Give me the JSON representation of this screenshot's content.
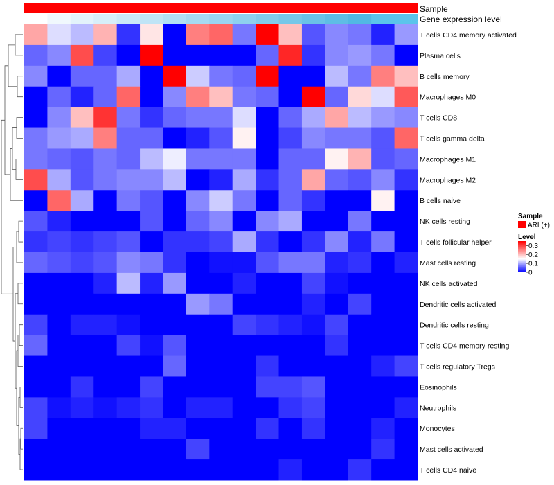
{
  "chart_data": {
    "type": "heatmap",
    "column_annotations": [
      {
        "label": "Sample"
      },
      {
        "label": "Gene expression level"
      }
    ],
    "sample_annotation_color": "#ff0000",
    "expression_annotation_colors": [
      "#ffffff",
      "#f0f8fd",
      "#e3f3fb",
      "#d7eef9",
      "#cbe9f8",
      "#bfe4f6",
      "#b2dff4",
      "#a6daf2",
      "#9ad5f0",
      "#8ed1ee",
      "#82cceb",
      "#76c7e9",
      "#6ac2e7",
      "#5ebde5",
      "#52b8e3",
      "#5bc4eb",
      "#5bc4eb"
    ],
    "rows": [
      "T cells CD4 memory activated",
      "Plasma cells",
      "B cells memory",
      "Macrophages M0",
      "T cells CD8",
      "T cells gamma delta",
      "Macrophages M1",
      "Macrophages M2",
      "B cells naive",
      "NK cells resting",
      "T cells follicular helper",
      "Mast cells resting",
      "NK cells activated",
      "Dendritic cells activated",
      "Dendritic cells resting",
      "T cells CD4 memory resting",
      "T cells regulatory  Tregs",
      "Eosinophils",
      "Neutrophils",
      "Monocytes",
      "Mast cells activated",
      "T cells CD4 naive"
    ],
    "n_columns": 17,
    "values": [
      [
        0.22,
        0.13,
        0.11,
        0.21,
        0.03,
        0.17,
        0.0,
        0.25,
        0.27,
        0.07,
        0.35,
        0.2,
        0.05,
        0.08,
        0.07,
        0.02,
        0.09
      ],
      [
        0.06,
        0.08,
        0.29,
        0.04,
        0.0,
        0.35,
        0.0,
        0.0,
        0.0,
        0.0,
        0.06,
        0.32,
        0.03,
        0.08,
        0.09,
        0.07,
        0.0
      ],
      [
        0.08,
        0.0,
        0.06,
        0.06,
        0.1,
        0.0,
        0.35,
        0.12,
        0.07,
        0.06,
        0.35,
        0.0,
        0.0,
        0.11,
        0.07,
        0.25,
        0.2
      ],
      [
        0.0,
        0.06,
        0.02,
        0.06,
        0.27,
        0.0,
        0.08,
        0.25,
        0.2,
        0.07,
        0.06,
        0.0,
        0.35,
        0.06,
        0.18,
        0.13,
        0.28
      ],
      [
        0.0,
        0.08,
        0.2,
        0.31,
        0.07,
        0.03,
        0.06,
        0.07,
        0.07,
        0.13,
        0.0,
        0.06,
        0.1,
        0.22,
        0.11,
        0.09,
        0.08
      ],
      [
        0.07,
        0.09,
        0.1,
        0.25,
        0.06,
        0.06,
        0.0,
        0.02,
        0.05,
        0.16,
        0.0,
        0.04,
        0.08,
        0.07,
        0.07,
        0.05,
        0.27
      ],
      [
        0.07,
        0.06,
        0.05,
        0.07,
        0.06,
        0.11,
        0.14,
        0.07,
        0.07,
        0.07,
        0.0,
        0.06,
        0.06,
        0.16,
        0.21,
        0.05,
        0.06
      ],
      [
        0.29,
        0.1,
        0.05,
        0.07,
        0.08,
        0.08,
        0.11,
        0.0,
        0.02,
        0.1,
        0.03,
        0.06,
        0.22,
        0.06,
        0.05,
        0.08,
        0.03
      ],
      [
        0.0,
        0.27,
        0.1,
        0.0,
        0.07,
        0.05,
        0.0,
        0.08,
        0.12,
        0.07,
        0.0,
        0.06,
        0.03,
        0.0,
        0.0,
        0.16,
        0.0
      ],
      [
        0.05,
        0.02,
        0.0,
        0.0,
        0.0,
        0.05,
        0.0,
        0.06,
        0.08,
        0.0,
        0.08,
        0.1,
        0.0,
        0.0,
        0.07,
        0.0,
        0.0
      ],
      [
        0.03,
        0.04,
        0.03,
        0.04,
        0.05,
        0.0,
        0.03,
        0.03,
        0.04,
        0.1,
        0.03,
        0.0,
        0.03,
        0.08,
        0.02,
        0.07,
        0.0
      ],
      [
        0.06,
        0.05,
        0.04,
        0.05,
        0.08,
        0.07,
        0.03,
        0.0,
        0.01,
        0.01,
        0.05,
        0.07,
        0.07,
        0.02,
        0.03,
        0.0,
        0.02
      ],
      [
        0.0,
        0.0,
        0.0,
        0.02,
        0.11,
        0.02,
        0.09,
        0.0,
        0.0,
        0.02,
        0.0,
        0.0,
        0.04,
        0.01,
        0.0,
        0.0,
        0.0
      ],
      [
        0.0,
        0.0,
        0.0,
        0.0,
        0.0,
        0.0,
        0.0,
        0.09,
        0.07,
        0.0,
        0.0,
        0.0,
        0.02,
        0.0,
        0.04,
        0.0,
        0.0
      ],
      [
        0.04,
        0.0,
        0.02,
        0.02,
        0.01,
        0.0,
        0.0,
        0.0,
        0.0,
        0.04,
        0.03,
        0.02,
        0.01,
        0.04,
        0.0,
        0.0,
        0.0
      ],
      [
        0.06,
        0.0,
        0.0,
        0.0,
        0.04,
        0.01,
        0.05,
        0.0,
        0.0,
        0.0,
        0.0,
        0.0,
        0.0,
        0.03,
        0.0,
        0.0,
        0.0
      ],
      [
        0.0,
        0.0,
        0.0,
        0.0,
        0.0,
        0.0,
        0.06,
        0.0,
        0.0,
        0.0,
        0.03,
        0.0,
        0.0,
        0.0,
        0.0,
        0.02,
        0.04
      ],
      [
        0.0,
        0.0,
        0.03,
        0.0,
        0.0,
        0.04,
        0.0,
        0.0,
        0.0,
        0.0,
        0.04,
        0.04,
        0.05,
        0.0,
        0.0,
        0.0,
        0.0
      ],
      [
        0.04,
        0.01,
        0.02,
        0.01,
        0.02,
        0.03,
        0.0,
        0.02,
        0.02,
        0.0,
        0.0,
        0.03,
        0.04,
        0.0,
        0.0,
        0.0,
        0.02
      ],
      [
        0.04,
        0.0,
        0.0,
        0.0,
        0.0,
        0.02,
        0.02,
        0.0,
        0.0,
        0.0,
        0.03,
        0.0,
        0.03,
        0.0,
        0.0,
        0.02,
        0.0
      ],
      [
        0.0,
        0.0,
        0.0,
        0.0,
        0.0,
        0.0,
        0.0,
        0.04,
        0.0,
        0.0,
        0.0,
        0.0,
        0.0,
        0.0,
        0.0,
        0.03,
        0.0
      ],
      [
        0.0,
        0.0,
        0.0,
        0.0,
        0.0,
        0.0,
        0.0,
        0.0,
        0.0,
        0.0,
        0.0,
        0.02,
        0.0,
        0.0,
        0.03,
        0.0,
        0.0
      ]
    ],
    "color_scale": {
      "low": "#0000ff",
      "mid": "#ffffff",
      "high": "#ff0000",
      "min": 0,
      "mid_value": 0.15,
      "max": 0.35
    },
    "legend": {
      "placement": "right",
      "sample_title": "Sample",
      "sample_entry": "ARL(+)",
      "level_title": "Level",
      "level_ticks": [
        "0.3",
        "0.2",
        "0.1",
        "0"
      ],
      "level_tick_values": [
        0.3,
        0.2,
        0.1,
        0
      ]
    },
    "row_dendrogram": true
  }
}
